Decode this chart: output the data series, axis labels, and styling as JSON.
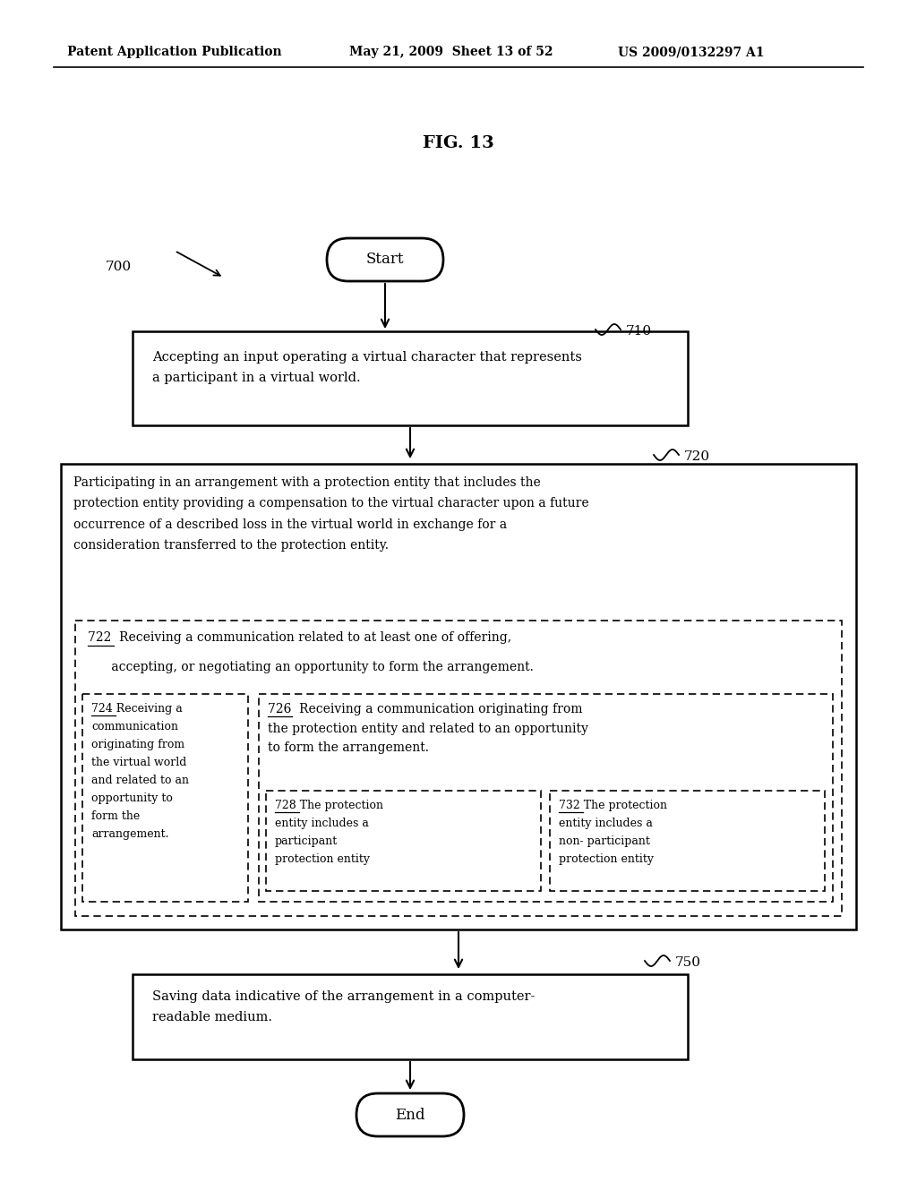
{
  "title": "FIG. 13",
  "header_left": "Patent Application Publication",
  "header_center": "May 21, 2009  Sheet 13 of 52",
  "header_right": "US 2009/0132297 A1",
  "bg_color": "#ffffff",
  "label_700": "700",
  "label_710": "710",
  "label_720": "720",
  "label_750": "750",
  "box710_text": "Accepting an input operating a virtual character that represents\na participant in a virtual world.",
  "box720_text_top": "Participating in an arrangement with a protection entity that includes the\nprotection entity providing a compensation to the virtual character upon a future\noccurrence of a described loss in the virtual world in exchange for a\nconsideration transferred to the protection entity.",
  "box722_line1": "722  Receiving a communication related to at least one of offering,",
  "box722_line2": "      accepting, or negotiating an opportunity to form the arrangement.",
  "box724_text": "724 Receiving a\ncommunication\noriginating from\nthe virtual world\nand related to an\nopportunity to\nform the\narrangement.",
  "box726_text": "726  Receiving a communication originating from\nthe protection entity and related to an opportunity\nto form the arrangement.",
  "box728_text": "728 The protection\nentity includes a\nparticipant\nprotection entity",
  "box732_text": "732 The protection\nentity includes a\nnon- participant\nprotection entity",
  "box750_text": "Saving data indicative of the arrangement in a computer-\nreadable medium.",
  "start_label": "Start",
  "end_label": "End"
}
